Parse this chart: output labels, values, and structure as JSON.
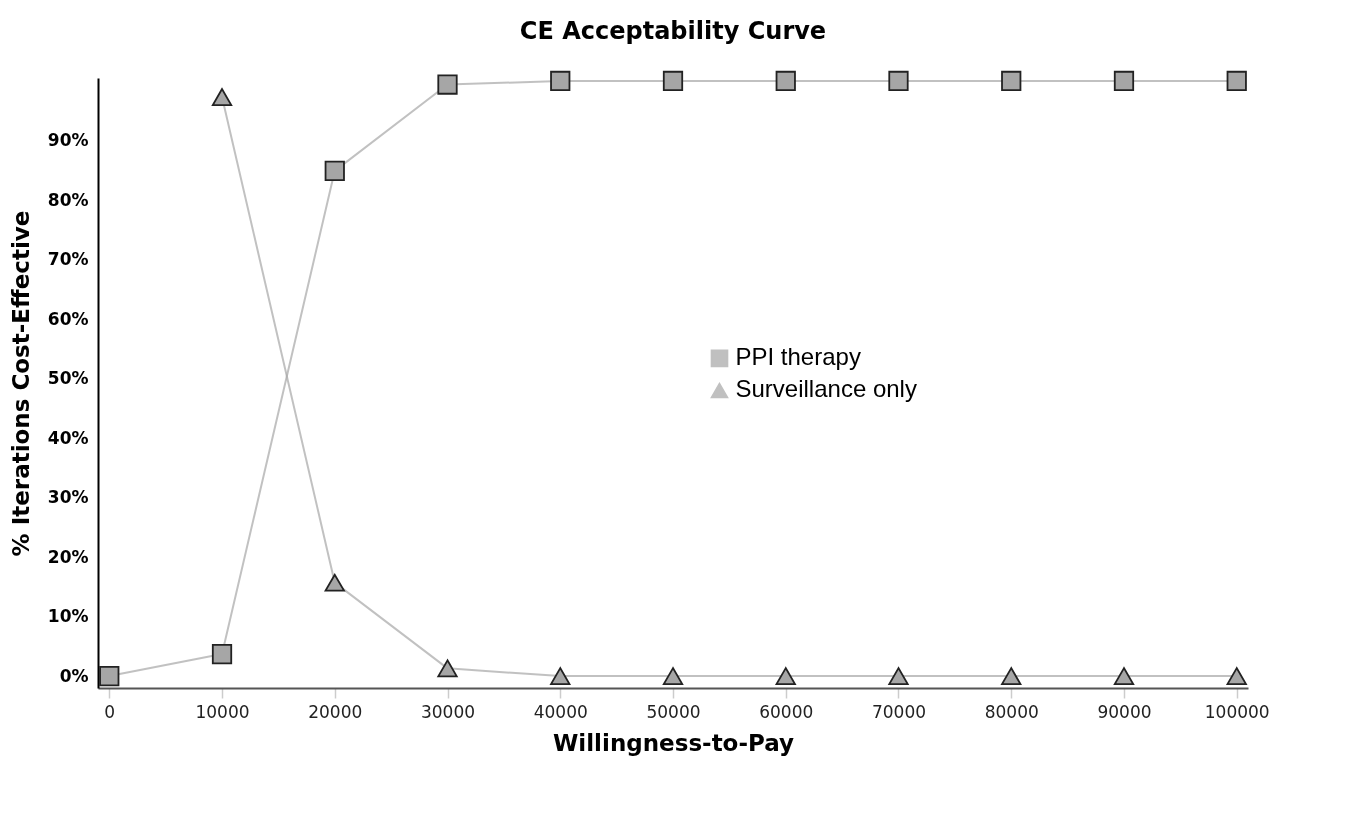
{
  "chart_data": {
    "type": "line",
    "title": "CE Acceptability Curve",
    "xlabel": "Willingness-to-Pay",
    "ylabel": "% Iterations Cost-Effective",
    "x": [
      0,
      10000,
      20000,
      30000,
      40000,
      50000,
      60000,
      70000,
      80000,
      90000,
      100000
    ],
    "series": [
      {
        "name": "PPI therapy",
        "color": "#a6a6a6",
        "marker": "square",
        "values": [
          0,
          3.7,
          84.9,
          99.4,
          100,
          100,
          100,
          100,
          100,
          100,
          100
        ]
      },
      {
        "name": "Surveillance only",
        "color": "#a6a6a6",
        "marker": "triangle",
        "values": [
          null,
          97.3,
          15.7,
          1.3,
          0,
          0,
          0,
          0,
          0,
          0,
          0
        ]
      }
    ],
    "xlim": [
      -1000,
      101000
    ],
    "ylim": [
      -2,
      100.5
    ],
    "xticks": [
      0,
      10000,
      20000,
      30000,
      40000,
      50000,
      60000,
      70000,
      80000,
      90000,
      100000
    ],
    "yticks": [
      {
        "value": 0,
        "label": "0%"
      },
      {
        "value": 10,
        "label": "10%"
      },
      {
        "value": 20,
        "label": "20%"
      },
      {
        "value": 30,
        "label": "30%"
      },
      {
        "value": 40,
        "label": "40%"
      },
      {
        "value": 50,
        "label": "50%"
      },
      {
        "value": 60,
        "label": "60%"
      },
      {
        "value": 70,
        "label": "70%"
      },
      {
        "value": 80,
        "label": "80%"
      },
      {
        "value": 90,
        "label": "90%"
      }
    ],
    "legend": "right",
    "grid": false
  }
}
